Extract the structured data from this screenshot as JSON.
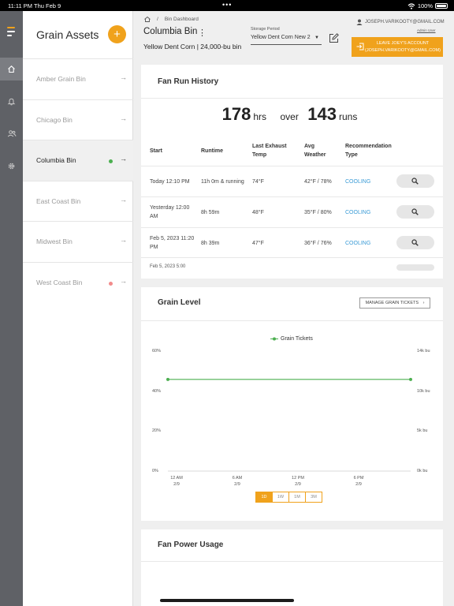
{
  "status_bar": {
    "time": "11:11 PM",
    "date": "Thu Feb 9",
    "battery": "100%"
  },
  "sidebar": {
    "title": "Grain Assets",
    "add_label": "+",
    "bins": [
      {
        "name": "Amber Grain Bin",
        "active": false,
        "dot": null
      },
      {
        "name": "Chicago Bin",
        "active": false,
        "dot": null
      },
      {
        "name": "Columbia Bin",
        "active": true,
        "dot": "#4caf50"
      },
      {
        "name": "East Coast Bin",
        "active": false,
        "dot": null
      },
      {
        "name": "Midwest Bin",
        "active": false,
        "dot": null
      },
      {
        "name": "West Coast Bin",
        "active": false,
        "dot": "#f28b8b"
      }
    ]
  },
  "header": {
    "breadcrumb": "Bin Dashboard",
    "bin_title": "Columbia Bin",
    "bin_sub": "Yellow Dent Corn | 24,000-bu bin",
    "storage_label": "Storage Period",
    "storage_value": "Yellow Dent Corn New 2",
    "user_email": "JOSEPH.VARIKOOTY@GMAIL.COM",
    "admin_label": "Admin User",
    "leave_line1": "LEAVE JOEY'S ACCOUNT",
    "leave_line2": "(JOSEPH.VARIKOOTY@GMAIL.COM)"
  },
  "fan_history": {
    "title": "Fan Run History",
    "hours": "178",
    "hours_unit": "hrs",
    "over": "over",
    "runs": "143",
    "runs_unit": "runs",
    "columns": [
      "Start",
      "Runtime",
      "Last Exhaust Temp",
      "Avg Weather",
      "Recommendation Type"
    ],
    "rows": [
      {
        "start": "Today 12:10 PM",
        "runtime": "11h 0m & running",
        "exhaust": "74°F",
        "weather": "42°F / 78%",
        "type": "COOLING"
      },
      {
        "start": "Yesterday 12:00 AM",
        "runtime": "8h 59m",
        "exhaust": "48°F",
        "weather": "35°F / 80%",
        "type": "COOLING"
      },
      {
        "start": "Feb 5, 2023 11:20 PM",
        "runtime": "8h 39m",
        "exhaust": "47°F",
        "weather": "36°F / 76%",
        "type": "COOLING"
      }
    ]
  },
  "grain_level": {
    "title": "Grain Level",
    "manage_label": "MANAGE GRAIN TICKETS",
    "ranges": [
      "1D",
      "1W",
      "1M",
      "3M"
    ],
    "selected_range": "1D"
  },
  "chart_data": {
    "type": "line",
    "title": "",
    "legend": "top-center",
    "series": [
      {
        "name": "Grain Tickets",
        "color": "#4caf50",
        "x": [
          "12 AM 2/9",
          "11 PM 2/9"
        ],
        "values": [
          11700,
          11700
        ]
      }
    ],
    "y_left_ticks": [
      "0%",
      "20%",
      "40%",
      "60%"
    ],
    "y_right_ticks": [
      "0k bu",
      "5k bu",
      "10k bu",
      "14k bu"
    ],
    "ylim": [
      0,
      14000
    ],
    "x_ticks": [
      {
        "l1": "12 AM",
        "l2": "2/9"
      },
      {
        "l1": "6 AM",
        "l2": "2/9"
      },
      {
        "l1": "12 PM",
        "l2": "2/9"
      },
      {
        "l1": "6 PM",
        "l2": "2/9"
      }
    ],
    "grid": false
  },
  "fan_power": {
    "title": "Fan Power Usage"
  }
}
